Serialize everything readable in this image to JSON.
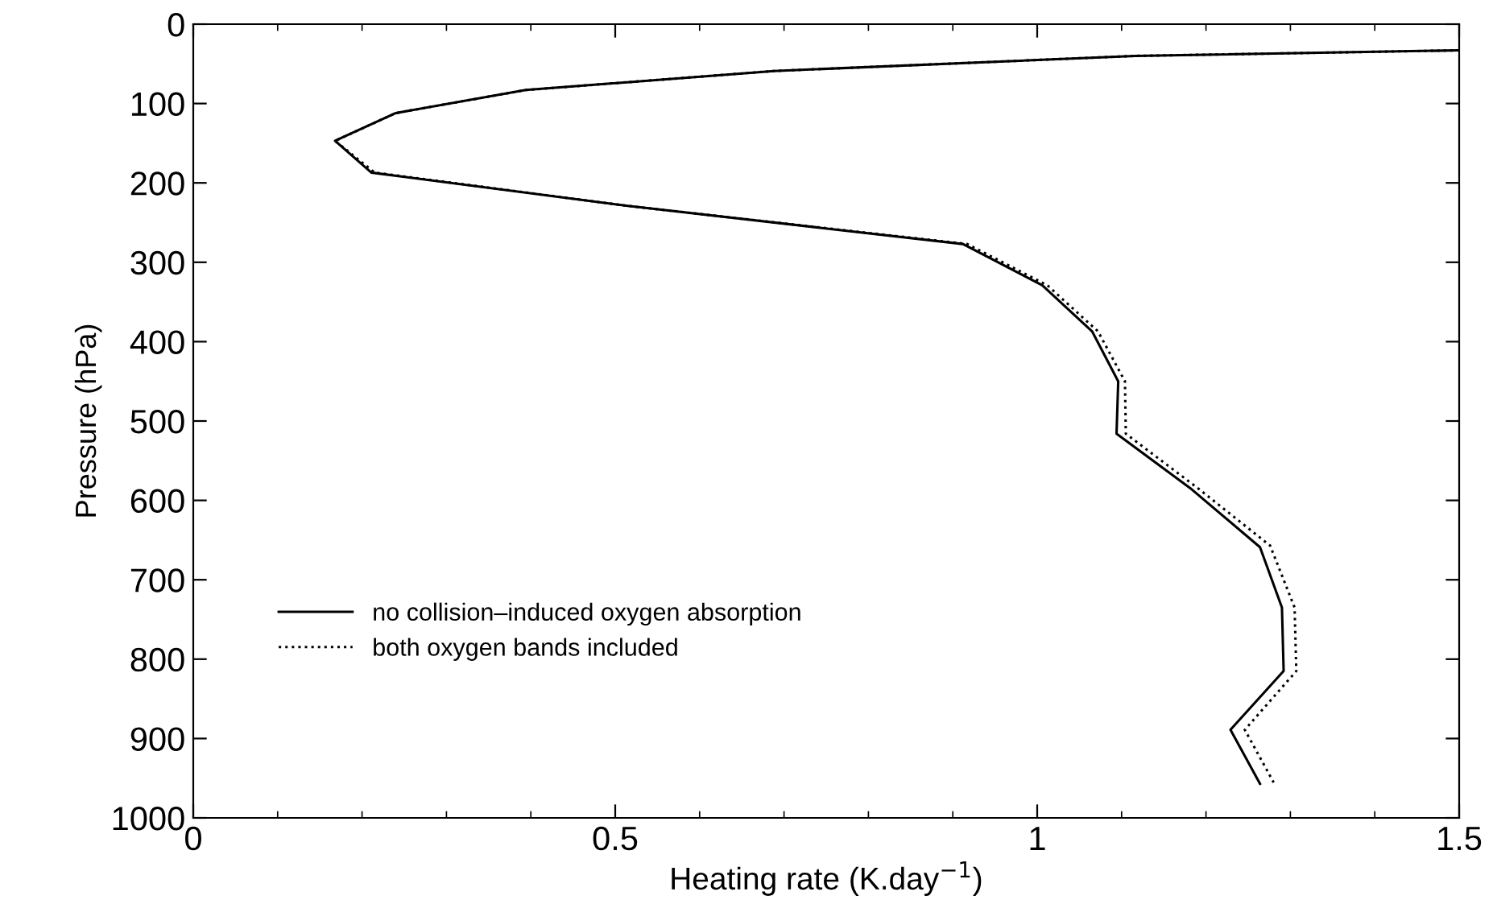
{
  "chart_data": {
    "type": "line",
    "xlabel": "Heating rate (K.day$^{−1}$)",
    "ylabel": "Pressure (hPa)",
    "xlim": [
      0,
      1.5
    ],
    "xticks": [
      0,
      0.5,
      1,
      1.5
    ],
    "ylim": [
      1000,
      0
    ],
    "yticks": [
      0,
      100,
      200,
      300,
      400,
      500,
      600,
      700,
      800,
      900,
      1000
    ],
    "grid": false,
    "legend": "bottom left",
    "marker": "none",
    "series": [
      {
        "name": "no collision–induced oxygen absorption",
        "color": "#000000",
        "line_style": "solid",
        "x": [
          1.5,
          1.116,
          0.688,
          0.394,
          0.24,
          0.168,
          0.211,
          0.515,
          0.912,
          1.006,
          1.065,
          1.096,
          1.094,
          1.183,
          1.264,
          1.29,
          1.292,
          1.229,
          1.264
        ],
        "values": [
          33,
          40,
          59,
          83,
          112,
          147,
          187,
          229,
          277,
          329,
          387,
          450,
          516,
          586,
          659,
          735,
          815,
          889,
          957
        ]
      },
      {
        "name": "both oxygen bands included",
        "color": "#000000",
        "line_style": "dotted",
        "x": [
          1.5,
          1.116,
          0.688,
          0.394,
          0.24,
          0.168,
          0.215,
          0.515,
          0.917,
          1.012,
          1.072,
          1.104,
          1.105,
          1.192,
          1.276,
          1.305,
          1.307,
          1.246,
          1.281
        ],
        "values": [
          33,
          40,
          59,
          83,
          112,
          147,
          187,
          229,
          277,
          329,
          387,
          450,
          516,
          586,
          657,
          735,
          815,
          889,
          957
        ]
      }
    ]
  }
}
